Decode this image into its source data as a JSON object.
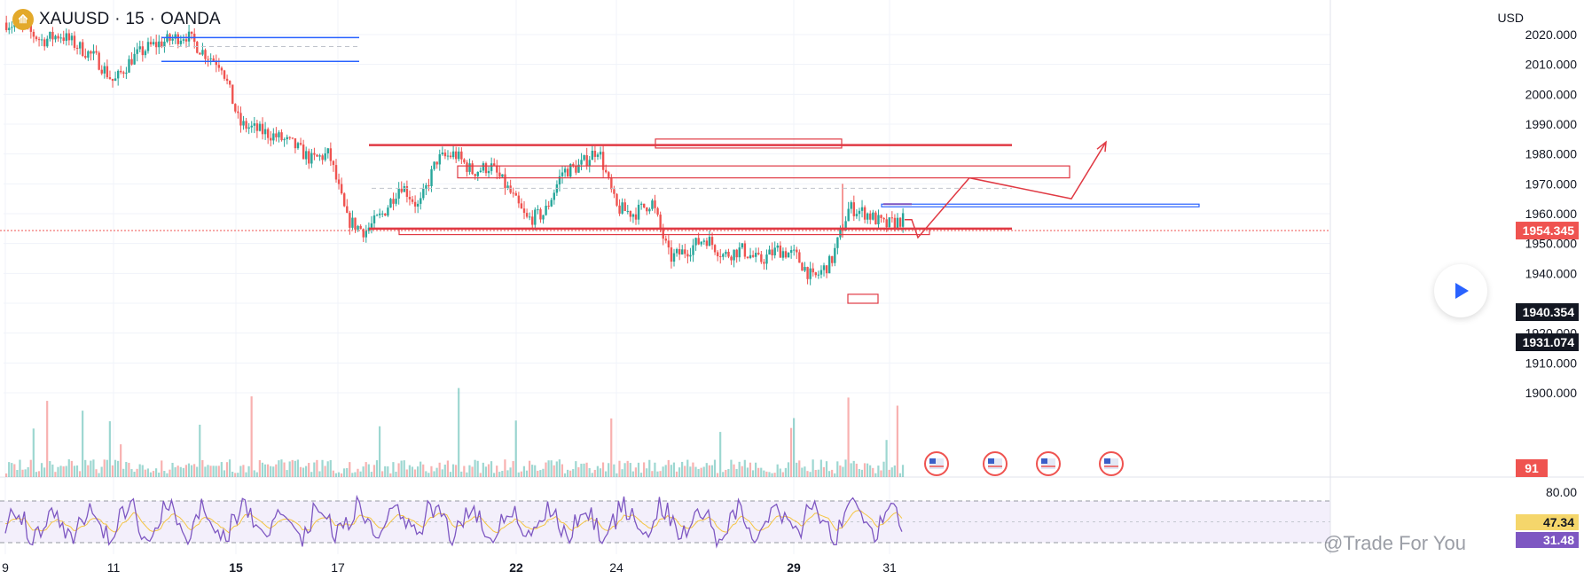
{
  "header": {
    "symbol": "XAUUSD",
    "interval": "15",
    "broker": "OANDA",
    "separator": "·"
  },
  "currency": "USD",
  "watermark": "@Trade For You",
  "colors": {
    "up": "#26a69a",
    "down": "#ef5350",
    "zone_red": "#e03a44",
    "zone_blue": "#2962ff",
    "rsi": "#7e57c2",
    "rsi_ma": "#f5c542"
  },
  "chart_data": {
    "type": "candlestick",
    "y_axis": {
      "min": 1895,
      "max": 2025,
      "ticks": [
        2020,
        2010,
        2000,
        1990,
        1980,
        1970,
        1960,
        1950,
        1940,
        1930,
        1920,
        1910,
        1900
      ],
      "tick_labels": [
        "2020.000",
        "2010.000",
        "2000.000",
        "1990.000",
        "1980.000",
        "1970.000",
        "1960.000",
        "1950.000",
        "1940.000",
        "1930.000",
        "1920.000",
        "1910.000",
        "1900.000"
      ]
    },
    "x_axis": {
      "ticks": [
        "9",
        "11",
        "15",
        "17",
        "22",
        "24",
        "29",
        "31"
      ]
    },
    "price_path": [
      2024,
      2022,
      2018,
      2020,
      2016,
      2012,
      2004,
      2012,
      2016,
      2018,
      2020,
      2014,
      2010,
      1990,
      1988,
      1986,
      1983,
      1978,
      1980,
      1958,
      1954,
      1960,
      1970,
      1962,
      1978,
      1980,
      1974,
      1976,
      1968,
      1958,
      1960,
      1974,
      1976,
      1982,
      1962,
      1960,
      1964,
      1945,
      1948,
      1952,
      1946,
      1948,
      1944,
      1948,
      1946,
      1938,
      1944,
      1962,
      1960,
      1956,
      1958
    ],
    "current_price": "1954.345",
    "price_labels": [
      "1940.354",
      "1931.074"
    ],
    "volume_label": "91",
    "rsi": {
      "levels": [
        80,
        20
      ],
      "level_labels": [
        "80.00"
      ],
      "value": "47.34",
      "ma_value": "31.48"
    },
    "zones_red": [
      {
        "y1": 1983,
        "y2": 1983
      },
      {
        "y1": 1955,
        "y2": 1955
      }
    ],
    "zones_blue": [
      {
        "y1": 2019,
        "y2": 2019
      },
      {
        "y1": 2011,
        "y2": 2011
      },
      {
        "y1": 1963,
        "y2": 1963
      }
    ],
    "projection": [
      1952,
      1972,
      1965,
      1984
    ]
  }
}
